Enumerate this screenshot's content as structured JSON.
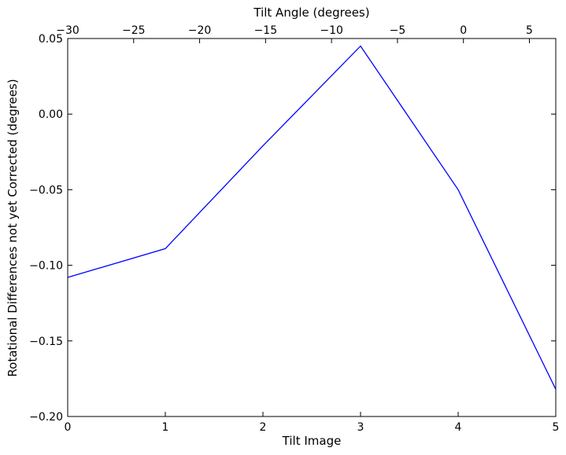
{
  "chart_data": {
    "type": "line",
    "title": "",
    "xlabel": "Tilt Image",
    "ylabel": "Rotational Differences not yet Corrected (degrees)",
    "top_xlabel": "Tilt Angle (degrees)",
    "xlim": [
      0,
      5
    ],
    "ylim": [
      -0.2,
      0.05
    ],
    "top_xlim": [
      -30,
      7
    ],
    "x_ticks": [
      0,
      1,
      2,
      3,
      4,
      5
    ],
    "x_tick_labels": [
      "0",
      "1",
      "2",
      "3",
      "4",
      "5"
    ],
    "y_ticks": [
      -0.2,
      -0.15,
      -0.1,
      -0.05,
      0.0,
      0.05
    ],
    "y_tick_labels": [
      "−0.20",
      "−0.15",
      "−0.10",
      "−0.05",
      "0.00",
      "0.05"
    ],
    "top_ticks": [
      -30,
      -25,
      -20,
      -15,
      -10,
      -5,
      0,
      5
    ],
    "top_tick_labels": [
      "−30",
      "−25",
      "−20",
      "−15",
      "−10",
      "−5",
      "0",
      "5"
    ],
    "grid": false,
    "series": [
      {
        "color": "#0000ff",
        "x": [
          0,
          1,
          2,
          3,
          4,
          5
        ],
        "y": [
          -0.108,
          -0.089,
          -0.021,
          0.045,
          -0.05,
          -0.182
        ]
      }
    ]
  }
}
